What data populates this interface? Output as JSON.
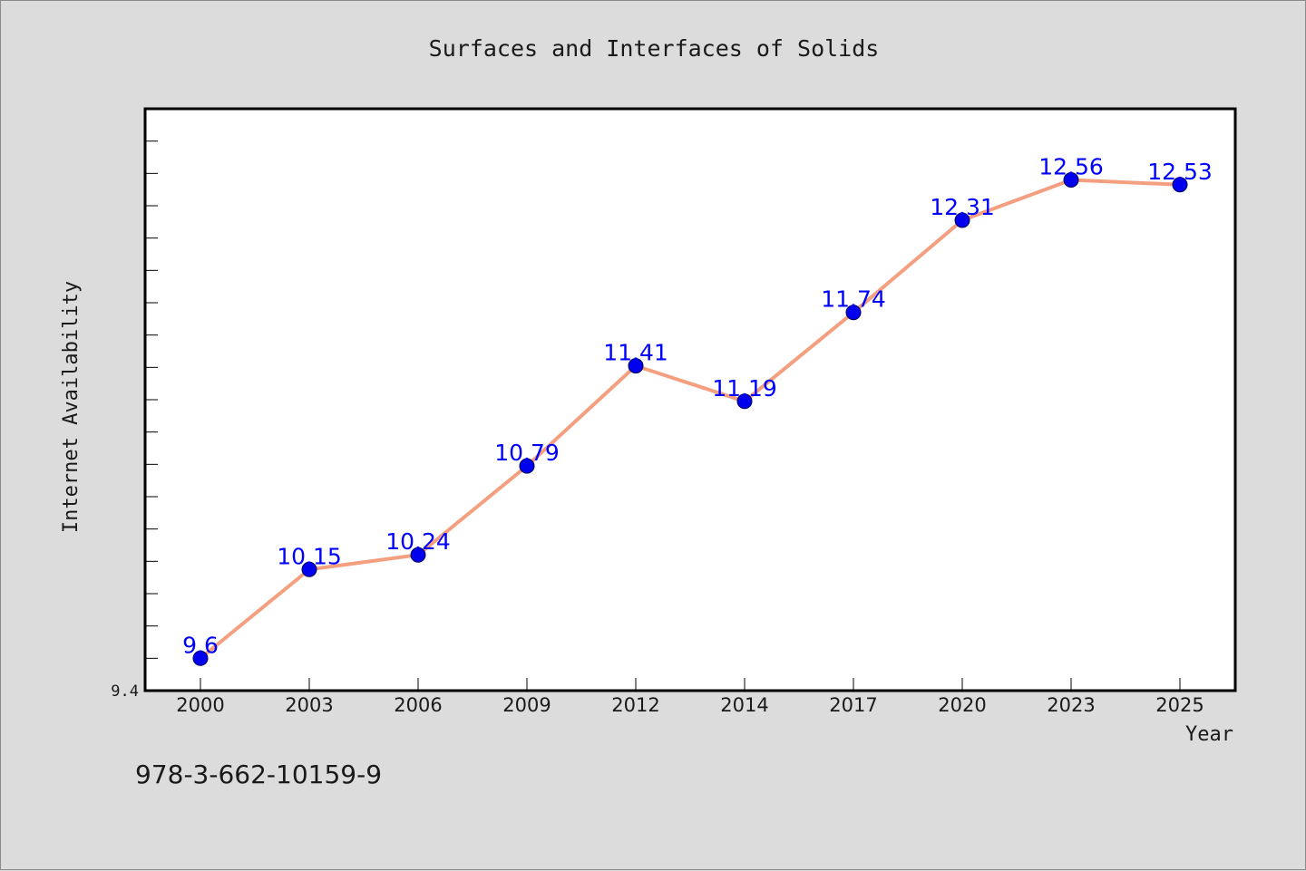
{
  "footer_code": "978-3-662-10159-9",
  "colors": {
    "background": "#dcdcdc",
    "plot_area": "#ffffff",
    "line": "#f4a080",
    "marker": "#0000ee",
    "data_label": "#0000ff",
    "text": "#1a1a1a"
  },
  "chart_data": {
    "type": "line",
    "title": "Surfaces and Interfaces of Solids",
    "xlabel": "Year",
    "ylabel": "Internet Availability",
    "categories": [
      "2000",
      "2003",
      "2006",
      "2009",
      "2012",
      "2014",
      "2017",
      "2020",
      "2023",
      "2025"
    ],
    "values": [
      9.6,
      10.15,
      10.24,
      10.79,
      11.41,
      11.19,
      11.74,
      12.31,
      12.56,
      12.53
    ],
    "data_labels": [
      "9.6",
      "10.15",
      "10.24",
      "10.79",
      "11.41",
      "11.19",
      "11.74",
      "12.31",
      "12.56",
      "12.53"
    ],
    "y_tick_labels": [
      "9.4"
    ],
    "ylim": [
      9.4,
      13.0
    ],
    "grid": false,
    "legend": "none"
  }
}
